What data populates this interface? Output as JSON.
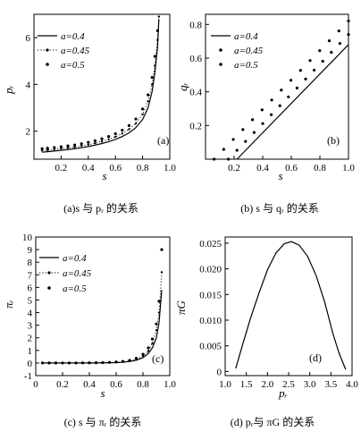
{
  "chart_data": [
    {
      "id": "a",
      "type": "line",
      "panel_label": "(a)",
      "caption": "(a)s 与 pᵣ 的关系",
      "xlabel": "s",
      "ylabel": "pᵣ",
      "xlim": [
        0,
        1.0
      ],
      "ylim": [
        0.8,
        7.0
      ],
      "xticks": [
        0.2,
        0.4,
        0.6,
        0.8,
        1.0
      ],
      "xtick_labels": [
        "0.2",
        "0.4",
        "0.6",
        "0.8",
        "1.0"
      ],
      "yticks": [
        2,
        4,
        6
      ],
      "ytick_labels": [
        "2",
        "4",
        "6"
      ],
      "legend_placement": "top-left",
      "series": [
        {
          "name": "a=0.4",
          "style": "solid",
          "x": [
            0.06,
            0.1,
            0.15,
            0.2,
            0.25,
            0.3,
            0.35,
            0.4,
            0.45,
            0.5,
            0.55,
            0.6,
            0.65,
            0.7,
            0.75,
            0.8,
            0.84,
            0.87,
            0.89,
            0.91,
            0.92
          ],
          "y": [
            1.1,
            1.12,
            1.15,
            1.18,
            1.21,
            1.25,
            1.29,
            1.34,
            1.4,
            1.47,
            1.55,
            1.65,
            1.77,
            1.93,
            2.15,
            2.5,
            3.0,
            3.7,
            4.5,
            5.6,
            6.8
          ]
        },
        {
          "name": "a=0.45",
          "style": "dotted-line",
          "x": [
            0.06,
            0.1,
            0.15,
            0.2,
            0.25,
            0.3,
            0.35,
            0.4,
            0.45,
            0.5,
            0.55,
            0.6,
            0.65,
            0.7,
            0.75,
            0.8,
            0.84,
            0.87,
            0.89,
            0.91,
            0.92
          ],
          "y": [
            1.17,
            1.19,
            1.22,
            1.25,
            1.28,
            1.32,
            1.37,
            1.42,
            1.48,
            1.56,
            1.65,
            1.76,
            1.9,
            2.08,
            2.33,
            2.72,
            3.28,
            4.0,
            4.8,
            5.9,
            6.9
          ]
        },
        {
          "name": "a=0.5",
          "style": "dots",
          "x": [
            0.06,
            0.1,
            0.15,
            0.2,
            0.25,
            0.3,
            0.35,
            0.4,
            0.45,
            0.5,
            0.55,
            0.6,
            0.65,
            0.7,
            0.75,
            0.8,
            0.84,
            0.87,
            0.89,
            0.91
          ],
          "y": [
            1.25,
            1.27,
            1.3,
            1.33,
            1.37,
            1.41,
            1.46,
            1.52,
            1.59,
            1.67,
            1.77,
            1.89,
            2.04,
            2.24,
            2.52,
            2.95,
            3.55,
            4.3,
            5.2,
            6.3
          ]
        }
      ]
    },
    {
      "id": "b",
      "type": "line",
      "panel_label": "(b)",
      "caption": "(b) s 与 qᵣ 的关系",
      "xlabel": "s",
      "ylabel": "qᵣ",
      "xlim": [
        0,
        1.0
      ],
      "ylim": [
        0,
        0.86
      ],
      "xticks": [
        0.2,
        0.4,
        0.6,
        0.8,
        1.0
      ],
      "xtick_labels": [
        "0.2",
        "0.4",
        "0.6",
        "0.8",
        "1.0"
      ],
      "yticks": [
        0.2,
        0.4,
        0.6,
        0.8
      ],
      "ytick_labels": [
        "0.2",
        "0.4",
        "0.6",
        "0.8"
      ],
      "legend_placement": "top-left",
      "series": [
        {
          "name": "a=0.4",
          "style": "solid",
          "x": [
            0.22,
            1.0
          ],
          "y": [
            0.0,
            0.68
          ]
        },
        {
          "name": "a=0.45",
          "style": "dots",
          "x": [
            0.16,
            1.0
          ],
          "y": [
            0.0,
            0.74
          ]
        },
        {
          "name": "a=0.5",
          "style": "dots",
          "x": [
            0.06,
            1.0
          ],
          "y": [
            0.0,
            0.82
          ]
        }
      ]
    },
    {
      "id": "c",
      "type": "line",
      "panel_label": "(c)",
      "caption": "(c) s 与 πᵣ 的关系",
      "xlabel": "s",
      "ylabel": "πᵣ",
      "xlim": [
        0,
        1.0
      ],
      "ylim": [
        -1,
        10
      ],
      "xticks": [
        0,
        0.2,
        0.4,
        0.6,
        0.8,
        1.0
      ],
      "xtick_labels": [
        "0",
        "0.2",
        "0.4",
        "0.6",
        "0.8",
        "1.0"
      ],
      "yticks": [
        -1,
        0,
        1,
        2,
        3,
        4,
        5,
        6,
        7,
        8,
        9,
        10
      ],
      "ytick_labels": [
        "-1",
        "0",
        "1",
        "2",
        "3",
        "4",
        "5",
        "6",
        "7",
        "8",
        "9",
        "10"
      ],
      "legend_placement": "top-left",
      "series": [
        {
          "name": "a=0.4",
          "style": "solid",
          "x": [
            0.05,
            0.2,
            0.4,
            0.5,
            0.6,
            0.65,
            0.7,
            0.75,
            0.8,
            0.84,
            0.87,
            0.9,
            0.92,
            0.94
          ],
          "y": [
            0,
            0,
            0,
            0.01,
            0.03,
            0.06,
            0.12,
            0.22,
            0.42,
            0.75,
            1.2,
            2.0,
            3.2,
            5.8
          ]
        },
        {
          "name": "a=0.45",
          "style": "dotted-line",
          "x": [
            0.05,
            0.2,
            0.4,
            0.5,
            0.6,
            0.65,
            0.7,
            0.75,
            0.8,
            0.84,
            0.87,
            0.9,
            0.92,
            0.94
          ],
          "y": [
            0,
            0,
            0,
            0.02,
            0.05,
            0.09,
            0.16,
            0.3,
            0.55,
            0.95,
            1.55,
            2.6,
            4.0,
            7.2
          ]
        },
        {
          "name": "a=0.5",
          "style": "dots",
          "x": [
            0.05,
            0.1,
            0.15,
            0.2,
            0.25,
            0.3,
            0.35,
            0.4,
            0.45,
            0.5,
            0.55,
            0.6,
            0.65,
            0.7,
            0.75,
            0.8,
            0.84,
            0.87,
            0.9,
            0.92,
            0.94
          ],
          "y": [
            0,
            0,
            0,
            0,
            0,
            0,
            0.01,
            0.01,
            0.02,
            0.03,
            0.05,
            0.08,
            0.13,
            0.21,
            0.38,
            0.7,
            1.2,
            1.9,
            3.1,
            4.9,
            9.0
          ]
        }
      ]
    },
    {
      "id": "d",
      "type": "line",
      "panel_label": "(d)",
      "caption": "(d) pᵣ与 πG 的关系",
      "xlabel": "pᵣ",
      "ylabel": "πG",
      "xlim": [
        1.0,
        4.0
      ],
      "ylim": [
        -0.0008,
        0.0262
      ],
      "xticks": [
        1.0,
        1.5,
        2.0,
        2.5,
        3.0,
        3.5,
        4.0
      ],
      "xtick_labels": [
        "1.0",
        "1.5",
        "2.0",
        "2.5",
        "3.0",
        "3.5",
        "4.0"
      ],
      "yticks": [
        0,
        0.005,
        0.01,
        0.015,
        0.02,
        0.025
      ],
      "ytick_labels": [
        "0",
        "0.005",
        "0.010",
        "0.015",
        "0.020",
        "0.025"
      ],
      "series": [
        {
          "style": "solid",
          "x": [
            1.25,
            1.4,
            1.6,
            1.8,
            2.0,
            2.2,
            2.4,
            2.57,
            2.75,
            2.95,
            3.15,
            3.35,
            3.55,
            3.7,
            3.85
          ],
          "y": [
            0.0006,
            0.0049,
            0.0104,
            0.0153,
            0.0198,
            0.0231,
            0.0249,
            0.0253,
            0.0246,
            0.0224,
            0.0187,
            0.0136,
            0.0073,
            0.0034,
            0.0004
          ]
        }
      ]
    }
  ]
}
